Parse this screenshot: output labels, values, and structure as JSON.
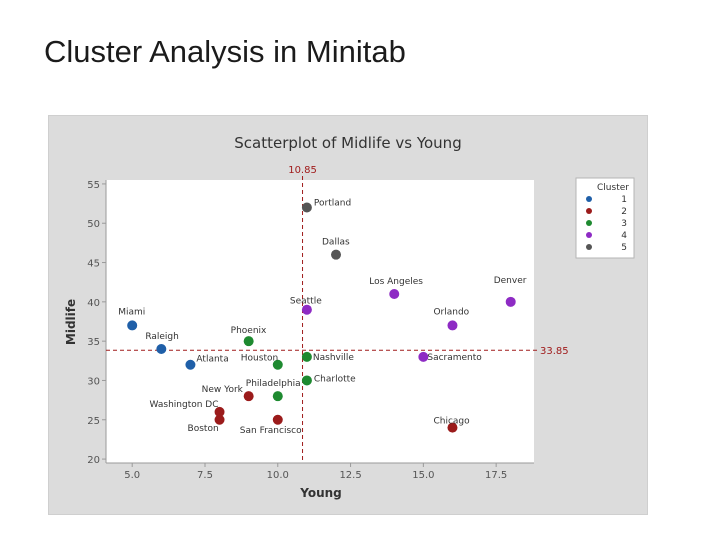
{
  "slide": {
    "title": "Cluster Analysis in Minitab"
  },
  "chart_data": {
    "type": "scatter",
    "title": "Scatterplot of Midlife vs Young",
    "xlabel": "Young",
    "ylabel": "Midlife",
    "xlim": [
      4.1,
      18.8
    ],
    "ylim": [
      19.5,
      55.5
    ],
    "xticks": [
      5.0,
      7.5,
      10.0,
      12.5,
      15.0,
      17.5
    ],
    "xtick_labels": [
      "5.0",
      "7.5",
      "10.0",
      "12.5",
      "15.0",
      "17.5"
    ],
    "yticks": [
      20,
      25,
      30,
      35,
      40,
      45,
      50,
      55
    ],
    "ytick_labels": [
      "20",
      "25",
      "30",
      "35",
      "40",
      "45",
      "50",
      "55"
    ],
    "grid": false,
    "legend": {
      "title": "Cluster",
      "placement": "right"
    },
    "reference_lines": [
      {
        "axis": "x",
        "value": 10.85,
        "label": "10.85",
        "color": "#a01c1c"
      },
      {
        "axis": "y",
        "value": 33.85,
        "label": "33.85",
        "color": "#a01c1c"
      }
    ],
    "series": [
      {
        "name": "1",
        "color": "#1f5fa8",
        "points": [
          {
            "label": "Miami",
            "x": 5.0,
            "y": 37
          },
          {
            "label": "Raleigh",
            "x": 6.0,
            "y": 34
          },
          {
            "label": "Atlanta",
            "x": 7.0,
            "y": 32
          }
        ]
      },
      {
        "name": "2",
        "color": "#9b1b1b",
        "points": [
          {
            "label": "New York",
            "x": 9.0,
            "y": 28
          },
          {
            "label": "Washington DC",
            "x": 8.0,
            "y": 26
          },
          {
            "label": "Boston",
            "x": 8.0,
            "y": 25
          },
          {
            "label": "San Francisco",
            "x": 10.0,
            "y": 25
          },
          {
            "label": "Chicago",
            "x": 16.0,
            "y": 24
          }
        ]
      },
      {
        "name": "3",
        "color": "#1e8a30",
        "points": [
          {
            "label": "Phoenix",
            "x": 9.0,
            "y": 35
          },
          {
            "label": "Houston",
            "x": 10.0,
            "y": 32
          },
          {
            "label": "Nashville",
            "x": 11.0,
            "y": 33
          },
          {
            "label": "Philadelphia",
            "x": 10.0,
            "y": 28
          },
          {
            "label": "Charlotte",
            "x": 11.0,
            "y": 30
          }
        ]
      },
      {
        "name": "4",
        "color": "#8e2bc4",
        "points": [
          {
            "label": "Los Angeles",
            "x": 14.0,
            "y": 41
          },
          {
            "label": "Denver",
            "x": 18.0,
            "y": 40
          },
          {
            "label": "Seattle",
            "x": 11.0,
            "y": 39
          },
          {
            "label": "Orlando",
            "x": 16.0,
            "y": 37
          },
          {
            "label": "Sacramento",
            "x": 15.0,
            "y": 33
          }
        ]
      },
      {
        "name": "5",
        "color": "#555555",
        "points": [
          {
            "label": "Portland",
            "x": 11.0,
            "y": 52
          },
          {
            "label": "Dallas",
            "x": 12.0,
            "y": 46
          }
        ]
      }
    ]
  }
}
